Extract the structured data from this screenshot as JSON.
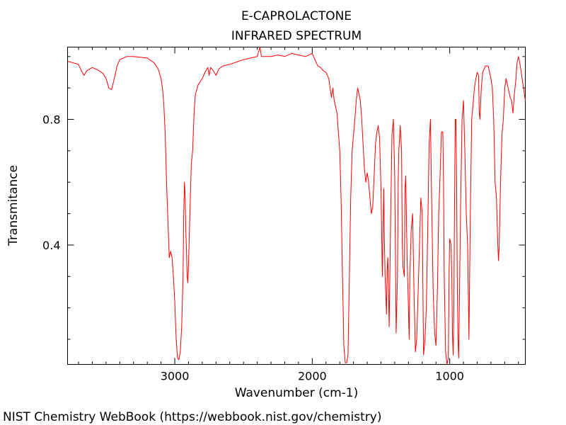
{
  "chart_data": {
    "type": "line",
    "title": "E-CAPROLACTONE",
    "subtitle": "INFRARED SPECTRUM",
    "xlabel": "Wavenumber (cm-1)",
    "ylabel": "Transmitance",
    "xlim": [
      3780,
      450
    ],
    "ylim": [
      0.02,
      1.03
    ],
    "x_ticks": [
      {
        "value": 3000,
        "label": "3000"
      },
      {
        "value": 2000,
        "label": "2000"
      },
      {
        "value": 1000,
        "label": "1000"
      }
    ],
    "y_ticks": [
      {
        "value": 0.8,
        "label": "0.8"
      },
      {
        "value": 0.4,
        "label": "0.4"
      }
    ],
    "grid": false,
    "series": [
      {
        "color": "#ff0000",
        "points": [
          [
            3780,
            0.985
          ],
          [
            3740,
            0.98
          ],
          [
            3700,
            0.975
          ],
          [
            3680,
            0.955
          ],
          [
            3660,
            0.94
          ],
          [
            3640,
            0.955
          ],
          [
            3600,
            0.965
          ],
          [
            3550,
            0.955
          ],
          [
            3520,
            0.945
          ],
          [
            3500,
            0.93
          ],
          [
            3480,
            0.9
          ],
          [
            3460,
            0.895
          ],
          [
            3440,
            0.93
          ],
          [
            3420,
            0.97
          ],
          [
            3400,
            0.99
          ],
          [
            3350,
            1.0
          ],
          [
            3300,
            1.0
          ],
          [
            3200,
            0.995
          ],
          [
            3150,
            0.98
          ],
          [
            3120,
            0.96
          ],
          [
            3100,
            0.93
          ],
          [
            3090,
            0.9
          ],
          [
            3080,
            0.85
          ],
          [
            3070,
            0.76
          ],
          [
            3060,
            0.6
          ],
          [
            3050,
            0.48
          ],
          [
            3040,
            0.36
          ],
          [
            3030,
            0.38
          ],
          [
            3020,
            0.36
          ],
          [
            3010,
            0.3
          ],
          [
            3000,
            0.22
          ],
          [
            2990,
            0.1
          ],
          [
            2980,
            0.04
          ],
          [
            2970,
            0.035
          ],
          [
            2960,
            0.06
          ],
          [
            2950,
            0.14
          ],
          [
            2940,
            0.3
          ],
          [
            2935,
            0.5
          ],
          [
            2930,
            0.6
          ],
          [
            2925,
            0.56
          ],
          [
            2920,
            0.45
          ],
          [
            2915,
            0.38
          ],
          [
            2910,
            0.3
          ],
          [
            2905,
            0.28
          ],
          [
            2900,
            0.34
          ],
          [
            2890,
            0.5
          ],
          [
            2880,
            0.66
          ],
          [
            2870,
            0.7
          ],
          [
            2860,
            0.82
          ],
          [
            2850,
            0.88
          ],
          [
            2830,
            0.91
          ],
          [
            2800,
            0.93
          ],
          [
            2780,
            0.95
          ],
          [
            2760,
            0.965
          ],
          [
            2750,
            0.94
          ],
          [
            2740,
            0.965
          ],
          [
            2720,
            0.955
          ],
          [
            2700,
            0.94
          ],
          [
            2680,
            0.96
          ],
          [
            2650,
            0.97
          ],
          [
            2600,
            0.975
          ],
          [
            2500,
            0.99
          ],
          [
            2450,
            0.995
          ],
          [
            2400,
            1.0
          ],
          [
            2380,
            1.03
          ],
          [
            2370,
            1.0
          ],
          [
            2350,
            1.0
          ],
          [
            2300,
            1.0
          ],
          [
            2250,
            1.005
          ],
          [
            2200,
            1.0
          ],
          [
            2150,
            1.01
          ],
          [
            2100,
            1.005
          ],
          [
            2050,
            1.0
          ],
          [
            2000,
            1.01
          ],
          [
            1980,
            0.99
          ],
          [
            1960,
            0.97
          ],
          [
            1940,
            0.965
          ],
          [
            1920,
            0.955
          ],
          [
            1900,
            0.95
          ],
          [
            1880,
            0.93
          ],
          [
            1860,
            0.87
          ],
          [
            1850,
            0.9
          ],
          [
            1840,
            0.86
          ],
          [
            1820,
            0.82
          ],
          [
            1800,
            0.7
          ],
          [
            1790,
            0.55
          ],
          [
            1780,
            0.3
          ],
          [
            1770,
            0.08
          ],
          [
            1760,
            0.025
          ],
          [
            1750,
            0.025
          ],
          [
            1740,
            0.05
          ],
          [
            1730,
            0.3
          ],
          [
            1720,
            0.55
          ],
          [
            1710,
            0.7
          ],
          [
            1700,
            0.75
          ],
          [
            1690,
            0.8
          ],
          [
            1680,
            0.86
          ],
          [
            1670,
            0.9
          ],
          [
            1660,
            0.88
          ],
          [
            1650,
            0.86
          ],
          [
            1640,
            0.8
          ],
          [
            1630,
            0.72
          ],
          [
            1620,
            0.64
          ],
          [
            1610,
            0.6
          ],
          [
            1600,
            0.63
          ],
          [
            1590,
            0.6
          ],
          [
            1580,
            0.55
          ],
          [
            1570,
            0.5
          ],
          [
            1560,
            0.52
          ],
          [
            1550,
            0.62
          ],
          [
            1540,
            0.72
          ],
          [
            1530,
            0.76
          ],
          [
            1520,
            0.78
          ],
          [
            1510,
            0.74
          ],
          [
            1500,
            0.58
          ],
          [
            1490,
            0.3
          ],
          [
            1480,
            0.58
          ],
          [
            1475,
            0.42
          ],
          [
            1470,
            0.3
          ],
          [
            1460,
            0.18
          ],
          [
            1455,
            0.32
          ],
          [
            1450,
            0.36
          ],
          [
            1440,
            0.14
          ],
          [
            1430,
            0.48
          ],
          [
            1420,
            0.75
          ],
          [
            1410,
            0.8
          ],
          [
            1400,
            0.62
          ],
          [
            1390,
            0.12
          ],
          [
            1380,
            0.3
          ],
          [
            1375,
            0.6
          ],
          [
            1370,
            0.7
          ],
          [
            1360,
            0.78
          ],
          [
            1350,
            0.7
          ],
          [
            1345,
            0.4
          ],
          [
            1340,
            0.33
          ],
          [
            1330,
            0.3
          ],
          [
            1325,
            0.58
          ],
          [
            1320,
            0.62
          ],
          [
            1310,
            0.36
          ],
          [
            1300,
            0.2
          ],
          [
            1295,
            0.1
          ],
          [
            1290,
            0.3
          ],
          [
            1280,
            0.45
          ],
          [
            1270,
            0.5
          ],
          [
            1260,
            0.26
          ],
          [
            1250,
            0.06
          ],
          [
            1240,
            0.1
          ],
          [
            1230,
            0.25
          ],
          [
            1220,
            0.4
          ],
          [
            1210,
            0.55
          ],
          [
            1200,
            0.5
          ],
          [
            1195,
            0.25
          ],
          [
            1190,
            0.05
          ],
          [
            1180,
            0.1
          ],
          [
            1170,
            0.2
          ],
          [
            1160,
            0.45
          ],
          [
            1150,
            0.72
          ],
          [
            1140,
            0.8
          ],
          [
            1130,
            0.5
          ],
          [
            1120,
            0.25
          ],
          [
            1110,
            0.12
          ],
          [
            1100,
            0.08
          ],
          [
            1090,
            0.25
          ],
          [
            1080,
            0.5
          ],
          [
            1070,
            0.62
          ],
          [
            1060,
            0.76
          ],
          [
            1050,
            0.76
          ],
          [
            1045,
            0.6
          ],
          [
            1040,
            0.3
          ],
          [
            1030,
            0.06
          ],
          [
            1020,
            0.02
          ],
          [
            1010,
            0.04
          ],
          [
            1005,
            0.3
          ],
          [
            1000,
            0.42
          ],
          [
            990,
            0.4
          ],
          [
            985,
            0.3
          ],
          [
            980,
            0.12
          ],
          [
            975,
            0.05
          ],
          [
            970,
            0.2
          ],
          [
            965,
            0.5
          ],
          [
            960,
            0.8
          ],
          [
            955,
            0.8
          ],
          [
            950,
            0.6
          ],
          [
            945,
            0.3
          ],
          [
            940,
            0.1
          ],
          [
            935,
            0.04
          ],
          [
            930,
            0.2
          ],
          [
            920,
            0.55
          ],
          [
            910,
            0.8
          ],
          [
            900,
            0.86
          ],
          [
            890,
            0.7
          ],
          [
            880,
            0.5
          ],
          [
            870,
            0.4
          ],
          [
            865,
            0.25
          ],
          [
            860,
            0.1
          ],
          [
            850,
            0.5
          ],
          [
            840,
            0.8
          ],
          [
            830,
            0.85
          ],
          [
            820,
            0.9
          ],
          [
            810,
            0.93
          ],
          [
            800,
            0.95
          ],
          [
            790,
            0.94
          ],
          [
            785,
            0.82
          ],
          [
            780,
            0.8
          ],
          [
            770,
            0.9
          ],
          [
            760,
            0.95
          ],
          [
            740,
            0.97
          ],
          [
            720,
            0.97
          ],
          [
            700,
            0.93
          ],
          [
            690,
            0.9
          ],
          [
            680,
            0.8
          ],
          [
            670,
            0.6
          ],
          [
            660,
            0.55
          ],
          [
            650,
            0.4
          ],
          [
            645,
            0.35
          ],
          [
            640,
            0.4
          ],
          [
            630,
            0.6
          ],
          [
            620,
            0.75
          ],
          [
            610,
            0.8
          ],
          [
            600,
            0.9
          ],
          [
            590,
            0.93
          ],
          [
            580,
            0.91
          ],
          [
            570,
            0.89
          ],
          [
            560,
            0.87
          ],
          [
            550,
            0.86
          ],
          [
            540,
            0.82
          ],
          [
            530,
            0.88
          ],
          [
            520,
            0.92
          ],
          [
            510,
            0.98
          ],
          [
            500,
            1.0
          ],
          [
            490,
            0.98
          ],
          [
            480,
            0.95
          ],
          [
            470,
            0.92
          ],
          [
            460,
            0.89
          ],
          [
            450,
            0.86
          ]
        ]
      }
    ]
  },
  "footer": "NIST Chemistry WebBook (https://webbook.nist.gov/chemistry)"
}
